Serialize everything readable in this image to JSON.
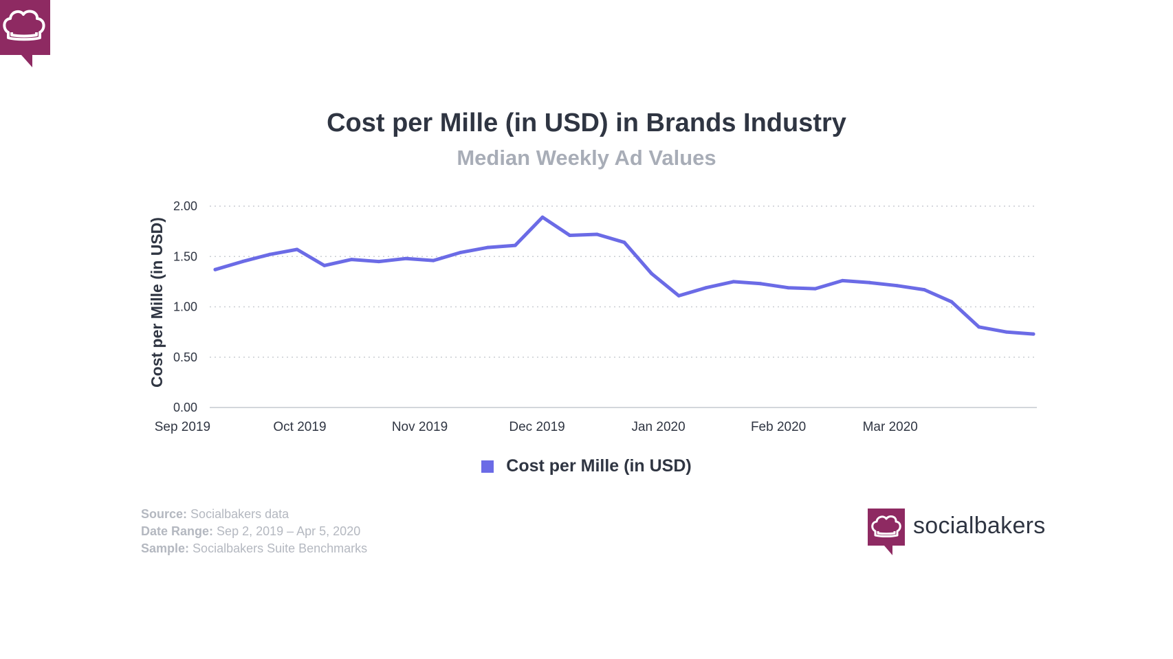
{
  "colors": {
    "brand": "#8e2a62",
    "line": "#6b6be6",
    "title": "#2f3542",
    "muted": "#a8adb7",
    "grid": "#c9ccd2"
  },
  "chart_data": {
    "type": "line",
    "title": "Cost per Mille (in USD) in Brands Industry",
    "subtitle": "Median Weekly Ad Values",
    "xlabel": "",
    "ylabel": "Cost per Mille (in USD)",
    "ylim": [
      0,
      2
    ],
    "y_ticks": [
      "0.00",
      "0.50",
      "1.00",
      "1.50",
      "2.00"
    ],
    "x_ticks": [
      {
        "label": "Sep 2019",
        "week": -1.2
      },
      {
        "label": "Oct 2019",
        "week": 3.1
      },
      {
        "label": "Nov 2019",
        "week": 7.5
      },
      {
        "label": "Dec 2019",
        "week": 11.8
      },
      {
        "label": "Jan 2020",
        "week": 16.25
      },
      {
        "label": "Feb 2020",
        "week": 20.65
      },
      {
        "label": "Mar 2020",
        "week": 24.75
      }
    ],
    "grid": true,
    "legend": "bottom-center",
    "series": [
      {
        "name": "Cost per Mille (in USD)",
        "values": [
          1.37,
          1.45,
          1.52,
          1.57,
          1.41,
          1.47,
          1.45,
          1.48,
          1.46,
          1.54,
          1.59,
          1.61,
          1.89,
          1.71,
          1.72,
          1.64,
          1.33,
          1.11,
          1.19,
          1.25,
          1.23,
          1.19,
          1.18,
          1.26,
          1.24,
          1.21,
          1.17,
          1.05,
          0.8,
          0.75,
          0.73
        ]
      }
    ]
  },
  "footer": {
    "source_key": "Source:",
    "source_value": "Socialbakers data",
    "range_key": "Date Range:",
    "range_value": "Sep 2, 2019 – Apr 5, 2020",
    "sample_key": "Sample:",
    "sample_value": "Socialbakers Suite Benchmarks"
  },
  "brand": {
    "name": "socialbakers",
    "corner_icon": "chef-hat-speech-bubble-icon",
    "logo_icon": "chef-hat-speech-bubble-icon"
  }
}
